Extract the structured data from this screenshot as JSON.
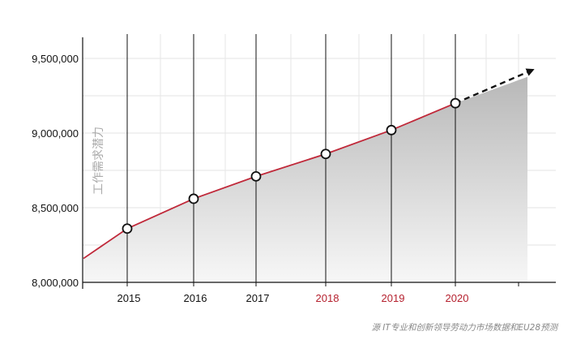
{
  "chart_data": {
    "type": "area",
    "title": "",
    "ylabel": "工作需求潜力",
    "xlabel": "",
    "source": "源 IT专业和创新领导劳动力市场数据和EU28预测",
    "ylim": [
      8000000,
      9700000
    ],
    "yticks": [
      {
        "value": 8000000,
        "label": "8,000,000"
      },
      {
        "value": 8500000,
        "label": "8,500,000"
      },
      {
        "value": 9000000,
        "label": "9,000,000"
      },
      {
        "value": 9500000,
        "label": "9,500,000"
      }
    ],
    "x": [
      {
        "label": "2015",
        "forecast": false
      },
      {
        "label": "2016",
        "forecast": false
      },
      {
        "label": "2017",
        "forecast": false
      },
      {
        "label": "2018",
        "forecast": true
      },
      {
        "label": "2019",
        "forecast": true
      },
      {
        "label": "2020",
        "forecast": true
      }
    ],
    "values": [
      8360000,
      8560000,
      8710000,
      8860000,
      9020000,
      9200000
    ],
    "trend_start": 8160000,
    "trend_end": 9420000,
    "grid": true,
    "colors": {
      "line": "#c0293a",
      "forecast_label": "#b5202e",
      "label": "#111111",
      "area_top": "#b8b8b8",
      "area_bottom": "#f7f7f7"
    }
  }
}
